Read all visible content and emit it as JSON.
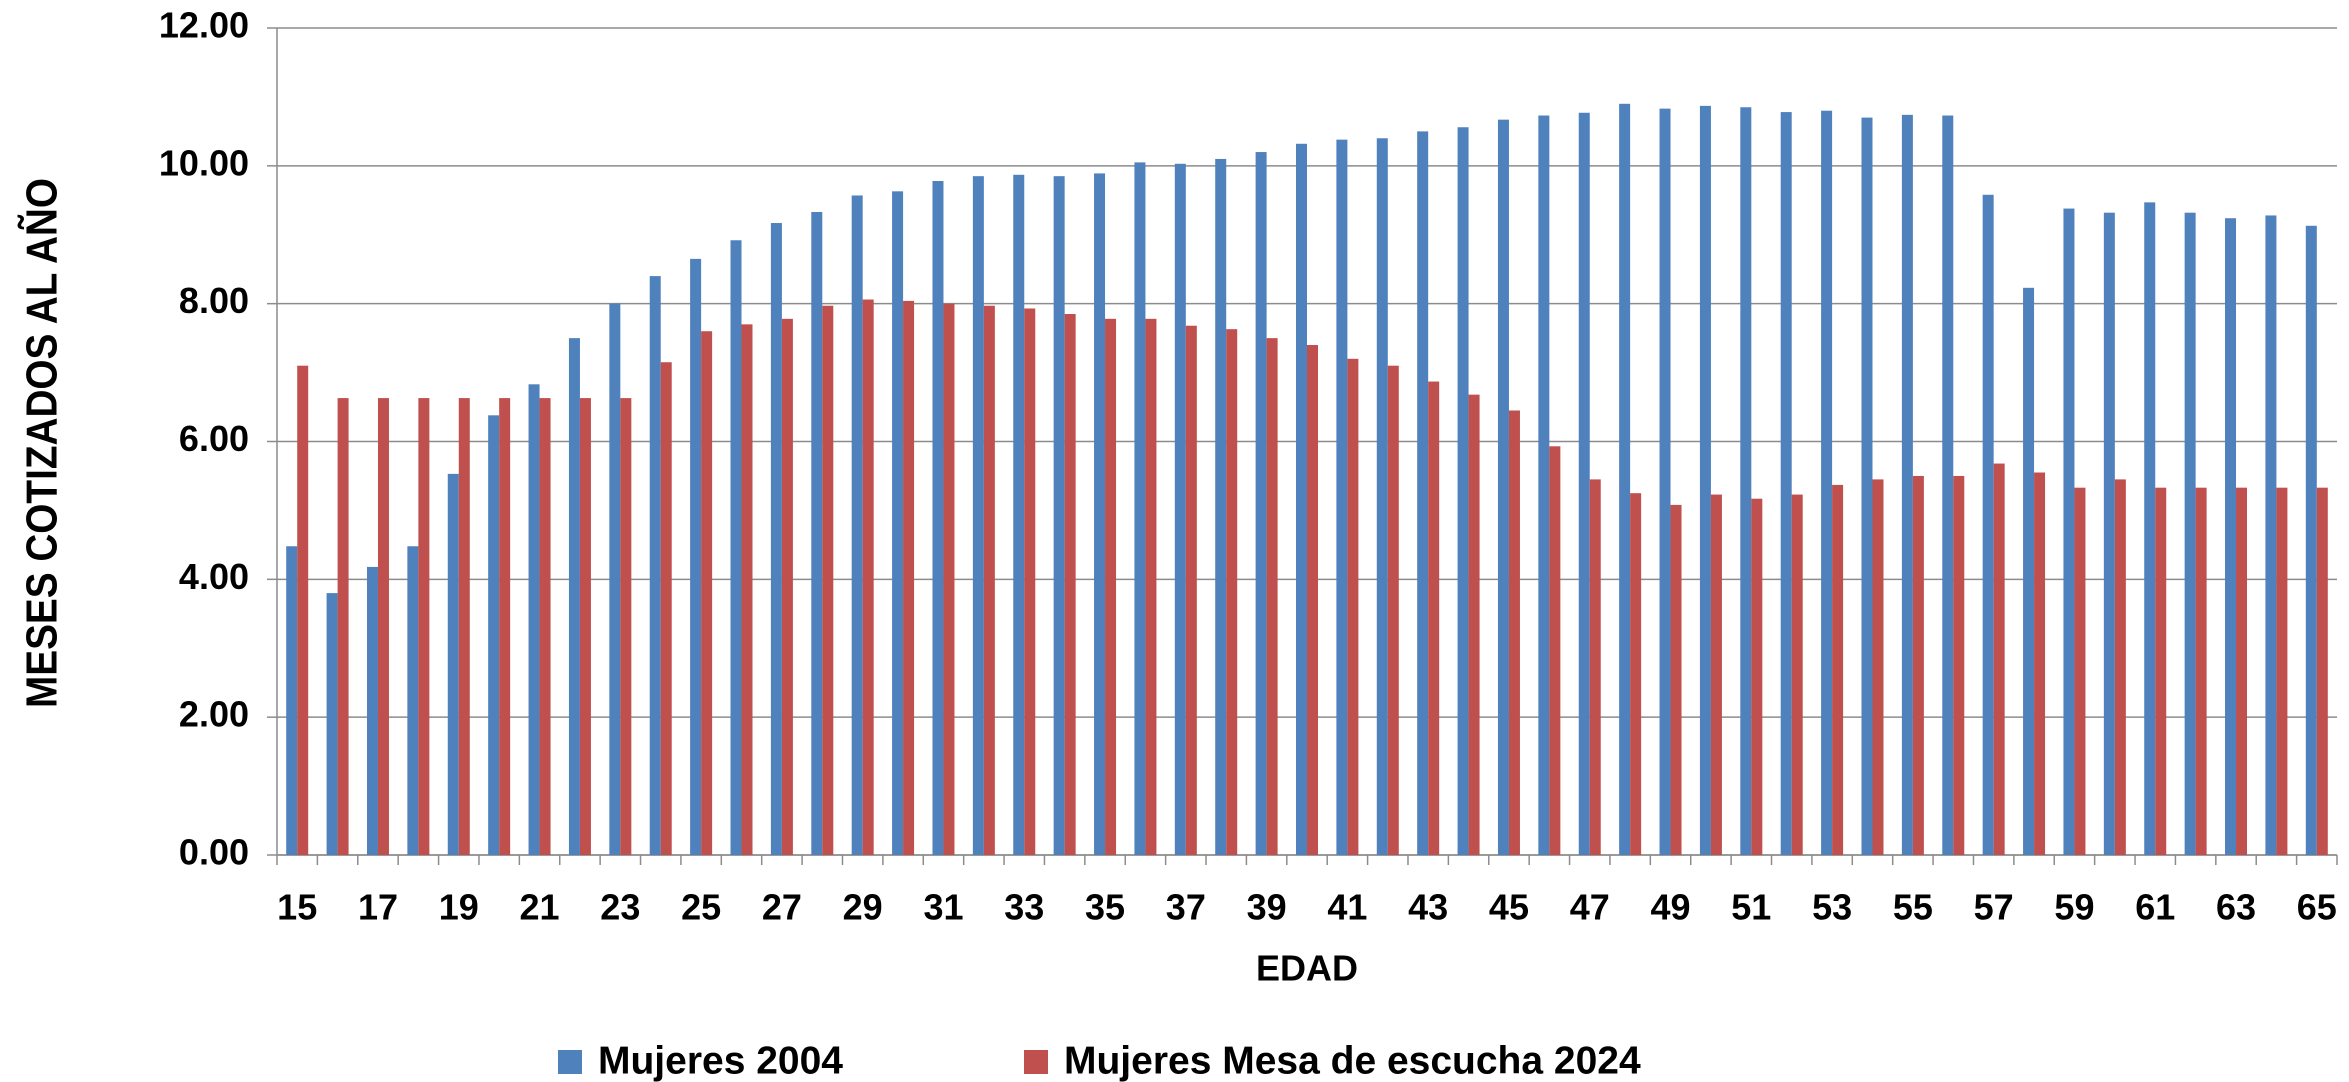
{
  "chart_data": {
    "type": "bar",
    "x_label": "EDAD",
    "y_label": "MESES COTIZADOS AL AÑO",
    "categories": [
      "15",
      null,
      "17",
      null,
      "19",
      null,
      "21",
      null,
      "23",
      null,
      "25",
      null,
      "27",
      null,
      "29",
      null,
      "31",
      null,
      "33",
      null,
      "35",
      null,
      "37",
      null,
      "39",
      null,
      "41",
      null,
      "43",
      null,
      "45",
      null,
      "47",
      null,
      "49",
      null,
      "51",
      null,
      "53",
      null,
      "55",
      null,
      "57",
      null,
      "59",
      null,
      "61",
      null,
      "63",
      null,
      "65"
    ],
    "series": [
      {
        "name": "Mujeres 2004",
        "color": "#4f81bd",
        "values": [
          4.48,
          3.8,
          4.18,
          4.48,
          5.53,
          6.38,
          6.83,
          7.5,
          8.0,
          8.4,
          8.65,
          8.92,
          9.17,
          9.33,
          9.57,
          9.63,
          9.78,
          9.85,
          9.87,
          9.85,
          9.89,
          10.05,
          10.03,
          10.1,
          10.2,
          10.32,
          10.38,
          10.4,
          10.5,
          10.56,
          10.67,
          10.73,
          10.77,
          10.9,
          10.83,
          10.87,
          10.85,
          10.78,
          10.8,
          10.7,
          10.74,
          10.73,
          9.58,
          8.23,
          9.38,
          9.32,
          9.47,
          9.32,
          9.24,
          9.28,
          9.13
        ]
      },
      {
        "name": "Mujeres Mesa de escucha 2024",
        "color": "#c0504d",
        "values": [
          7.1,
          6.63,
          6.63,
          6.63,
          6.63,
          6.63,
          6.63,
          6.63,
          6.63,
          7.15,
          7.6,
          7.7,
          7.78,
          7.97,
          8.06,
          8.04,
          8.0,
          7.97,
          7.93,
          7.85,
          7.78,
          7.78,
          7.68,
          7.63,
          7.5,
          7.4,
          7.2,
          7.1,
          6.87,
          6.68,
          6.45,
          5.93,
          5.45,
          5.25,
          5.08,
          5.23,
          5.17,
          5.23,
          5.37,
          5.45,
          5.5,
          5.5,
          5.68,
          5.55,
          5.33,
          5.45,
          5.33,
          5.33,
          5.33,
          5.33,
          5.33
        ]
      }
    ],
    "ylim": [
      0,
      12
    ],
    "yticks": [
      {
        "value": 0,
        "label": "0.00"
      },
      {
        "value": 2,
        "label": "2.00"
      },
      {
        "value": 4,
        "label": "4.00"
      },
      {
        "value": 6,
        "label": "6.00"
      },
      {
        "value": 8,
        "label": "8.00"
      },
      {
        "value": 10,
        "label": "10.00"
      },
      {
        "value": 12,
        "label": "12.00"
      }
    ],
    "grid": true,
    "legend": "bottom"
  }
}
